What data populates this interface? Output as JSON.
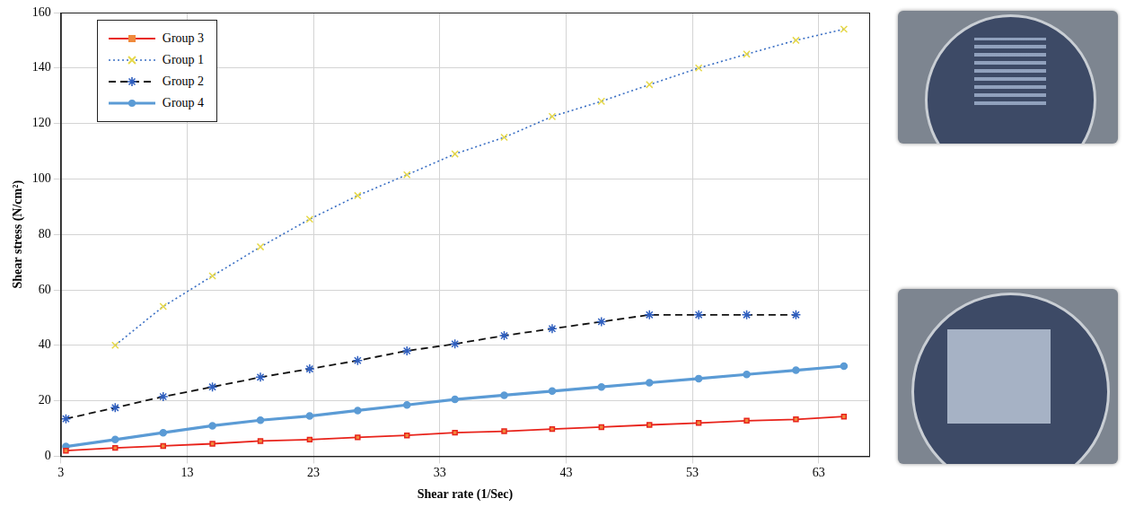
{
  "chart_data": {
    "type": "line",
    "x_label": "Shear rate (1/Sec)",
    "y_label": "Shear stress (N/cm²)",
    "xlim": [
      3,
      67
    ],
    "xticks": [
      3,
      13,
      23,
      33,
      43,
      53,
      63
    ],
    "ylim": [
      0,
      160
    ],
    "yticks": [
      0,
      20,
      40,
      60,
      80,
      100,
      120,
      140,
      160
    ],
    "grid": true,
    "legend": "upper left",
    "series": [
      {
        "name": "Group 3",
        "color": "#e8231b",
        "line_style": "solid",
        "marker": "square",
        "x": [
          3.4,
          7.3,
          11.1,
          15.0,
          18.8,
          22.7,
          26.5,
          30.4,
          34.2,
          38.1,
          41.9,
          45.8,
          49.6,
          53.5,
          57.3,
          61.2,
          65.0
        ],
        "values": [
          2,
          3,
          3.7,
          4.5,
          5.5,
          6,
          6.8,
          7.5,
          8.5,
          9,
          9.8,
          10.5,
          11.3,
          12,
          12.8,
          13.3,
          14.3
        ]
      },
      {
        "name": "Group 1",
        "color": "#3a6fc4",
        "line_style": "dotted",
        "marker": "cross",
        "x": [
          7.3,
          11.1,
          15.0,
          18.8,
          22.7,
          26.5,
          30.4,
          34.2,
          38.1,
          41.9,
          45.8,
          49.6,
          53.5,
          57.3,
          61.2,
          65.0
        ],
        "values": [
          40,
          54,
          65,
          75.5,
          85.5,
          94,
          101.5,
          109,
          115,
          122.5,
          128,
          134,
          140,
          145,
          150,
          154
        ]
      },
      {
        "name": "Group 2",
        "color": "#111111",
        "line_style": "dashed",
        "marker": "star",
        "x": [
          3.4,
          7.3,
          11.1,
          15.0,
          18.8,
          22.7,
          26.5,
          30.4,
          34.2,
          38.1,
          41.9,
          45.8,
          49.6,
          53.5,
          57.3,
          61.2
        ],
        "values": [
          13.5,
          17.5,
          21.5,
          25,
          28.5,
          31.5,
          34.5,
          38,
          40.5,
          43.5,
          46,
          48.5,
          51,
          51,
          51,
          51
        ]
      },
      {
        "name": "Group 4",
        "color": "#5b9bd5",
        "line_style": "solid",
        "marker": "circle",
        "x": [
          3.4,
          7.3,
          11.1,
          15.0,
          18.8,
          22.7,
          26.5,
          30.4,
          34.2,
          38.1,
          41.9,
          45.8,
          49.6,
          53.5,
          57.3,
          61.2,
          65.0
        ],
        "values": [
          3.5,
          6,
          8.5,
          11,
          13,
          14.5,
          16.5,
          18.5,
          20.5,
          22,
          23.5,
          25,
          26.5,
          28,
          29.5,
          31,
          32.5
        ]
      }
    ]
  }
}
